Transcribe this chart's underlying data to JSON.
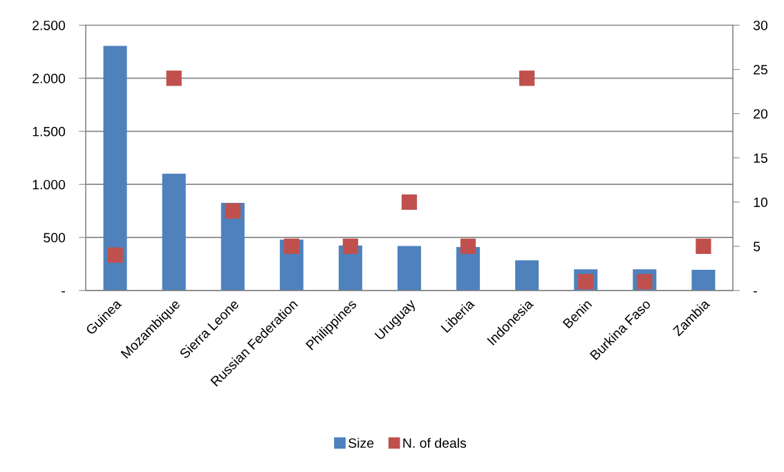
{
  "chart_data": {
    "type": "bar",
    "categories": [
      "Guinea",
      "Mozambique",
      "Sierra Leone",
      "Russian Federation",
      "Philippines",
      "Uruguay",
      "Liberia",
      "Indonesia",
      "Benin",
      "Burkina Faso",
      "Zambia"
    ],
    "series": [
      {
        "name": "Size",
        "color": "#4f81bd",
        "values": [
          2305,
          1100,
          825,
          480,
          425,
          420,
          410,
          285,
          200,
          200,
          195
        ]
      },
      {
        "name": "N. of deals",
        "type": "scatter",
        "axis": "y2",
        "color": "#c0504d",
        "marker": "square",
        "values": [
          4,
          24,
          9,
          5,
          5,
          10,
          5,
          24,
          1,
          1,
          5
        ]
      }
    ],
    "ylim": [
      0,
      2500
    ],
    "yticks": [
      {
        "value": 0,
        "label": "-"
      },
      {
        "value": 500,
        "label": "500"
      },
      {
        "value": 1000,
        "label": "1.000"
      },
      {
        "value": 1500,
        "label": "1.500"
      },
      {
        "value": 2000,
        "label": "2.000"
      },
      {
        "value": 2500,
        "label": "2.500"
      }
    ],
    "y2lim": [
      0,
      30
    ],
    "y2ticks": [
      {
        "value": 0,
        "label": "-"
      },
      5,
      10,
      15,
      20,
      25,
      30
    ],
    "grid": "y",
    "legend": "bottom"
  }
}
